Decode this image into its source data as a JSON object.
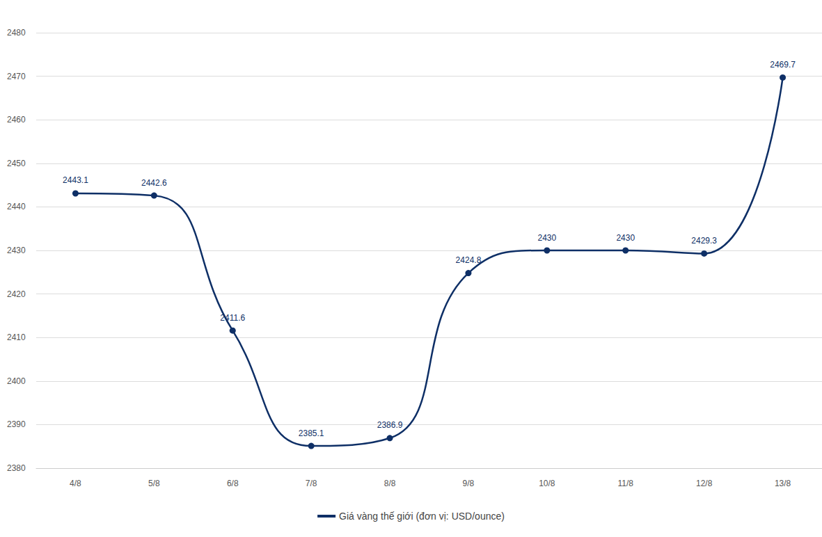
{
  "chart_data": {
    "type": "line",
    "categories": [
      "4/8",
      "5/8",
      "6/8",
      "7/8",
      "8/8",
      "9/8",
      "10/8",
      "11/8",
      "12/8",
      "13/8"
    ],
    "series": [
      {
        "name": "Giá vàng thế giới (đơn vị: USD/ounce)",
        "color": "#0e2f66",
        "values": [
          2443.1,
          2442.6,
          2411.6,
          2385.1,
          2386.9,
          2424.8,
          2430,
          2430,
          2429.3,
          2469.7
        ]
      }
    ],
    "ylim": [
      2380,
      2480
    ],
    "yticks": [
      2380,
      2390,
      2400,
      2410,
      2420,
      2430,
      2440,
      2450,
      2460,
      2470,
      2480
    ],
    "grid": true,
    "legend": "bottom",
    "data_labels": true,
    "marker": "circle"
  }
}
